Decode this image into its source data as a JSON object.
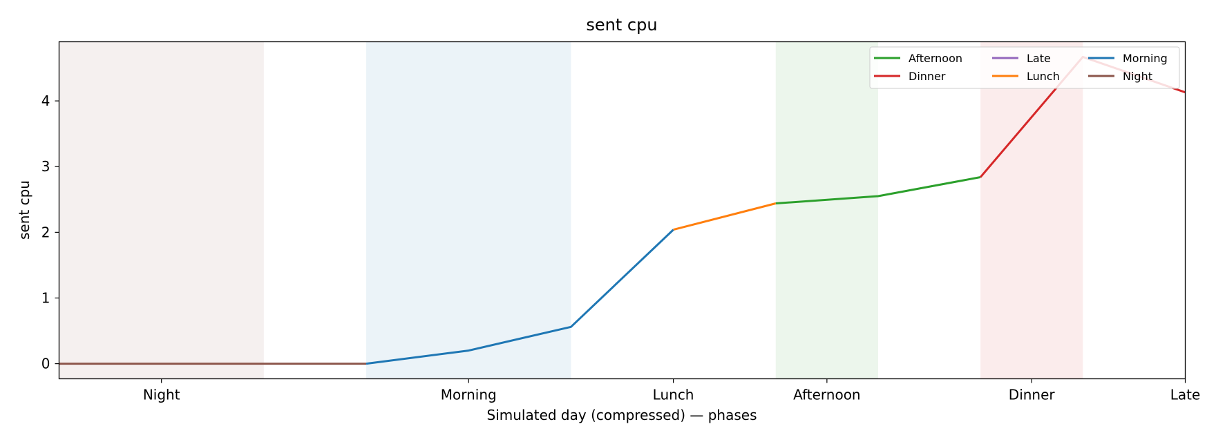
{
  "chart_data": {
    "type": "line",
    "title": "sent cpu",
    "xlabel": "Simulated day (compressed) — phases",
    "ylabel": "sent cpu",
    "xlim": [
      0,
      11
    ],
    "ylim": [
      -0.23,
      4.9
    ],
    "grid": false,
    "legend_position": "top-right",
    "x_ticks": [
      {
        "label": "Night",
        "x": 1
      },
      {
        "label": "Morning",
        "x": 4
      },
      {
        "label": "Lunch",
        "x": 6
      },
      {
        "label": "Afternoon",
        "x": 7.5
      },
      {
        "label": "Dinner",
        "x": 9.5
      },
      {
        "label": "Late",
        "x": 11
      }
    ],
    "y_ticks": [
      0,
      1,
      2,
      3,
      4
    ],
    "shaded_bands": [
      {
        "phase": "Night",
        "from": 0,
        "to": 2,
        "color": "#8c564b"
      },
      {
        "phase": "Morning",
        "from": 3,
        "to": 5,
        "color": "#1f77b4"
      },
      {
        "phase": "Afternoon",
        "from": 7,
        "to": 8,
        "color": "#2ca02c"
      },
      {
        "phase": "Dinner",
        "from": 9,
        "to": 10,
        "color": "#d62728"
      }
    ],
    "series": [
      {
        "name": "Afternoon",
        "color": "#2ca02c",
        "x": [
          7,
          8,
          9
        ],
        "y": [
          2.44,
          2.55,
          2.84
        ]
      },
      {
        "name": "Dinner",
        "color": "#d62728",
        "x": [
          9,
          10,
          11
        ],
        "y": [
          2.84,
          4.67,
          4.13
        ]
      },
      {
        "name": "Late",
        "color": "#9467bd",
        "x": [],
        "y": []
      },
      {
        "name": "Lunch",
        "color": "#ff7f0e",
        "x": [
          6,
          7
        ],
        "y": [
          2.04,
          2.44
        ]
      },
      {
        "name": "Morning",
        "color": "#1f77b4",
        "x": [
          3,
          4,
          5,
          6
        ],
        "y": [
          0,
          0.2,
          0.56,
          2.04
        ]
      },
      {
        "name": "Night",
        "color": "#8c564b",
        "x": [
          0,
          1,
          2,
          3
        ],
        "y": [
          0,
          0,
          0,
          0
        ]
      }
    ]
  }
}
